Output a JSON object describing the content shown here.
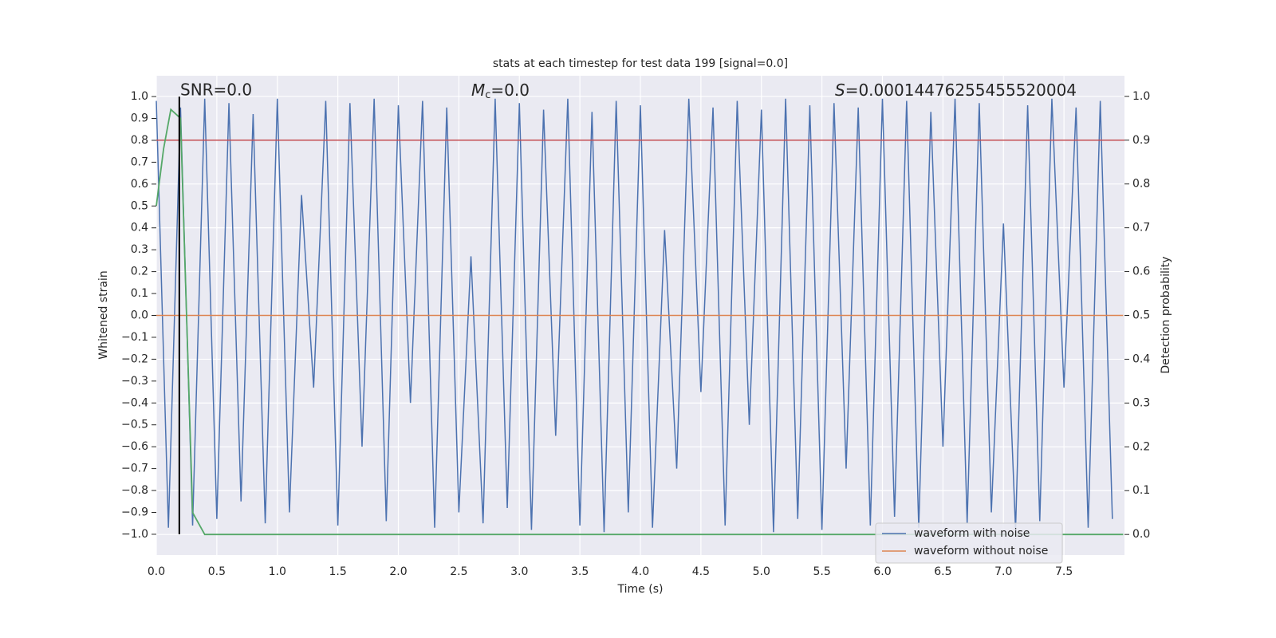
{
  "chart_data": {
    "type": "line",
    "title": "stats at each timestep for test data 199 [signal=0.0]",
    "xlabel": "Time (s)",
    "ylabel": "Whitened strain",
    "y2label": "Detection probability",
    "annotations": {
      "snr": "SNR=0.0",
      "mc": {
        "symbol": "M",
        "subscript": "c",
        "text": "=0.0"
      },
      "s": {
        "symbol": "S",
        "text": "=0.00014476255455520004"
      }
    },
    "xlim": [
      0,
      8
    ],
    "ylim": [
      -1.095,
      1.095
    ],
    "y2lim": [
      -0.047,
      1.047
    ],
    "xticks": [
      {
        "value": 0,
        "label": "0.0"
      },
      {
        "value": 0.5,
        "label": "0.5"
      },
      {
        "value": 1,
        "label": "1.0"
      },
      {
        "value": 1.5,
        "label": "1.5"
      },
      {
        "value": 2,
        "label": "2.0"
      },
      {
        "value": 2.5,
        "label": "2.5"
      },
      {
        "value": 3,
        "label": "3.0"
      },
      {
        "value": 3.5,
        "label": "3.5"
      },
      {
        "value": 4,
        "label": "4.0"
      },
      {
        "value": 4.5,
        "label": "4.5"
      },
      {
        "value": 5,
        "label": "5.0"
      },
      {
        "value": 5.5,
        "label": "5.5"
      },
      {
        "value": 6,
        "label": "6.0"
      },
      {
        "value": 6.5,
        "label": "6.5"
      },
      {
        "value": 7,
        "label": "7.0"
      },
      {
        "value": 7.5,
        "label": "7.5"
      }
    ],
    "yticks": [
      {
        "value": 1,
        "label": "1.0"
      },
      {
        "value": 0.9,
        "label": "0.9"
      },
      {
        "value": 0.8,
        "label": "0.8"
      },
      {
        "value": 0.7,
        "label": "0.7"
      },
      {
        "value": 0.6,
        "label": "0.6"
      },
      {
        "value": 0.5,
        "label": "0.5"
      },
      {
        "value": 0.4,
        "label": "0.4"
      },
      {
        "value": 0.3,
        "label": "0.3"
      },
      {
        "value": 0.2,
        "label": "0.2"
      },
      {
        "value": 0.1,
        "label": "0.1"
      },
      {
        "value": 0,
        "label": "0.0"
      },
      {
        "value": -0.1,
        "label": "−0.1"
      },
      {
        "value": -0.2,
        "label": "−0.2"
      },
      {
        "value": -0.3,
        "label": "−0.3"
      },
      {
        "value": -0.4,
        "label": "−0.4"
      },
      {
        "value": -0.5,
        "label": "−0.5"
      },
      {
        "value": -0.6,
        "label": "−0.6"
      },
      {
        "value": -0.7,
        "label": "−0.7"
      },
      {
        "value": -0.8,
        "label": "−0.8"
      },
      {
        "value": -0.9,
        "label": "−0.9"
      },
      {
        "value": -1,
        "label": "−1.0"
      }
    ],
    "y2ticks": [
      {
        "value": 1,
        "label": "1.0"
      },
      {
        "value": 0.9,
        "label": "0.9"
      },
      {
        "value": 0.8,
        "label": "0.8"
      },
      {
        "value": 0.7,
        "label": "0.7"
      },
      {
        "value": 0.6,
        "label": "0.6"
      },
      {
        "value": 0.5,
        "label": "0.5"
      },
      {
        "value": 0.4,
        "label": "0.4"
      },
      {
        "value": 0.3,
        "label": "0.3"
      },
      {
        "value": 0.2,
        "label": "0.2"
      },
      {
        "value": 0.1,
        "label": "0.1"
      },
      {
        "value": 0,
        "label": "0.0"
      }
    ],
    "grid": true,
    "legend": "lower right",
    "series": [
      {
        "name": "waveform with noise",
        "color": "#4c72b0",
        "x": [
          0,
          0.1,
          0.2,
          0.3,
          0.4,
          0.5,
          0.6,
          0.7,
          0.8,
          0.9,
          1,
          1.1,
          1.2,
          1.3,
          1.4,
          1.5,
          1.6,
          1.7,
          1.8,
          1.9,
          2,
          2.1,
          2.2,
          2.3,
          2.4,
          2.5,
          2.6,
          2.7,
          2.8,
          2.9,
          3,
          3.1,
          3.2,
          3.3,
          3.4,
          3.5,
          3.6,
          3.7,
          3.8,
          3.9,
          4,
          4.1,
          4.2,
          4.3,
          4.4,
          4.5,
          4.6,
          4.7,
          4.8,
          4.9,
          5,
          5.1,
          5.2,
          5.3,
          5.4,
          5.5,
          5.6,
          5.7,
          5.8,
          5.9,
          6,
          6.1,
          6.2,
          6.3,
          6.4,
          6.5,
          6.6,
          6.7,
          6.8,
          6.9,
          7,
          7.1,
          7.2,
          7.3,
          7.4,
          7.5,
          7.6,
          7.7,
          7.8,
          7.9
        ],
        "values": [
          0.98,
          -0.97,
          0.95,
          -0.96,
          0.99,
          -0.93,
          0.97,
          -0.85,
          0.92,
          -0.95,
          0.99,
          -0.9,
          0.55,
          -0.33,
          0.98,
          -0.96,
          0.97,
          -0.6,
          0.99,
          -0.94,
          0.96,
          -0.4,
          0.98,
          -0.97,
          0.95,
          -0.9,
          0.27,
          -0.95,
          0.99,
          -0.88,
          0.97,
          -0.98,
          0.94,
          -0.55,
          0.99,
          -0.96,
          0.93,
          -0.99,
          0.98,
          -0.9,
          0.96,
          -0.97,
          0.39,
          -0.7,
          0.99,
          -0.35,
          0.95,
          -0.96,
          0.98,
          -0.5,
          0.94,
          -0.99,
          0.99,
          -0.93,
          0.96,
          -0.98,
          0.97,
          -0.7,
          0.95,
          -0.96,
          0.99,
          -0.92,
          0.98,
          -0.97,
          0.93,
          -0.6,
          0.99,
          -0.95,
          0.97,
          -0.9,
          0.42,
          -0.98,
          0.96,
          -0.94,
          0.99,
          -0.33,
          0.95,
          -0.97,
          0.98,
          -0.93
        ]
      },
      {
        "name": "waveform without noise",
        "color": "#dd8452",
        "x": [
          0,
          7.99
        ],
        "values": [
          0,
          0
        ]
      }
    ],
    "detection_probability": {
      "color": "#55a868",
      "axis": "y2",
      "x": [
        0,
        0.06,
        0.12,
        0.2,
        0.3,
        0.4,
        7.99
      ],
      "values": [
        0.75,
        0.88,
        0.97,
        0.95,
        0.05,
        0,
        0
      ]
    },
    "threshold": {
      "color": "#c44e52",
      "axis": "y2",
      "value": 0.9
    },
    "marker": {
      "color": "#000000",
      "x": 0.19
    }
  }
}
